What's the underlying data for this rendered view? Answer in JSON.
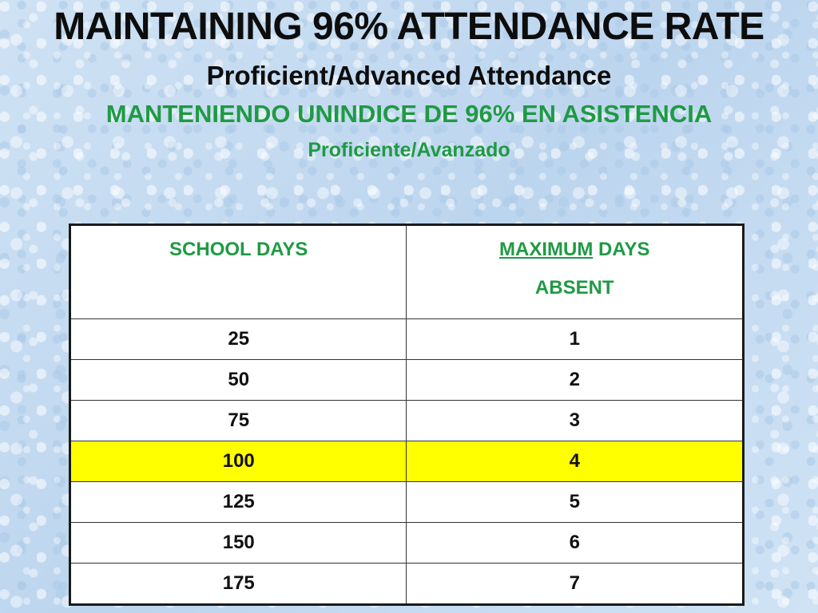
{
  "titles": {
    "main": "MAINTAINING 96% ATTENDANCE RATE",
    "subtitle": "Proficient/Advanced Attendance",
    "spanish": "MANTENIENDO UNINDICE DE 96% EN ASISTENCIA",
    "spanish_subtitle": "Proficiente/Avanzado"
  },
  "table": {
    "headers": {
      "school_days": "SCHOOL DAYS",
      "max_underlined": "MAXIMUM",
      "max_rest": " DAYS",
      "absent": "ABSENT"
    },
    "rows": [
      {
        "school_days": "25",
        "max_absent": "1"
      },
      {
        "school_days": "50",
        "max_absent": "2"
      },
      {
        "school_days": "75",
        "max_absent": "3"
      },
      {
        "school_days": "100",
        "max_absent": "4"
      },
      {
        "school_days": "125",
        "max_absent": "5"
      },
      {
        "school_days": "150",
        "max_absent": "6"
      },
      {
        "school_days": "175",
        "max_absent": "7"
      }
    ],
    "highlighted_row_index": 3
  },
  "colors": {
    "title_black": "#0d0d0d",
    "spanish_green": "#1f9a44",
    "highlight_yellow": "#ffff00",
    "background_blue": "#c6dcf1"
  }
}
